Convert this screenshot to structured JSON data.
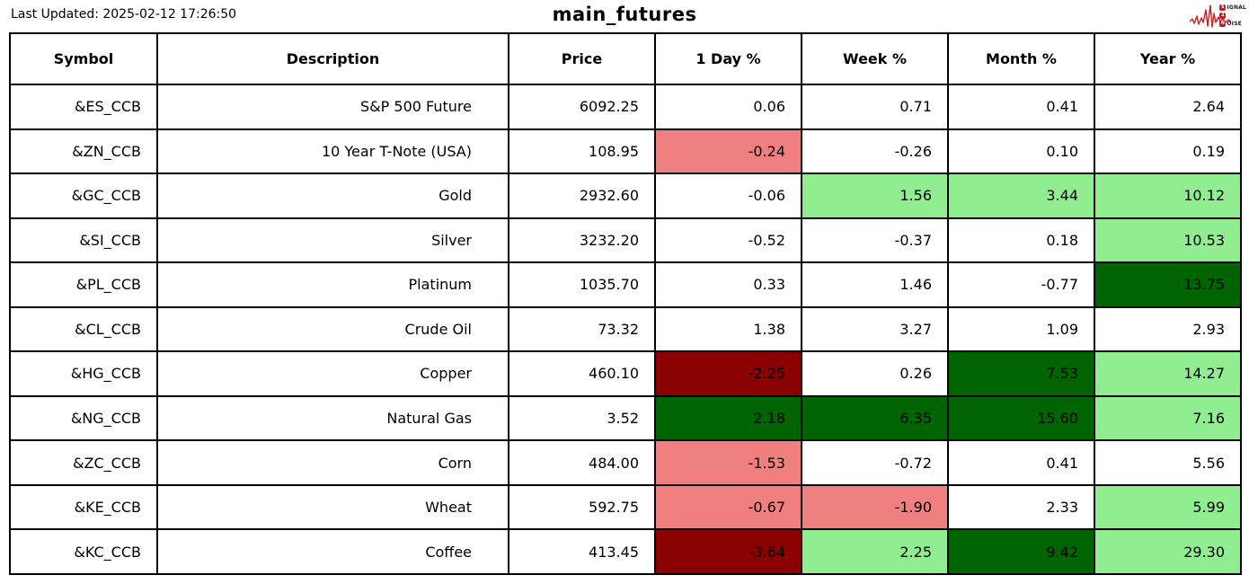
{
  "logo": {
    "lines": [
      {
        "initial": "S",
        "rest": "IGNAL"
      },
      {
        "initial": "2",
        "rest": ""
      },
      {
        "initial": "N",
        "rest": "OISE"
      }
    ],
    "accent_color": "#C41F1F",
    "wave_color": "#C22B2B"
  },
  "chart_data": {
    "type": "table",
    "title": "main_futures",
    "last_updated": "Last Updated: 2025-02-12 17:26:50",
    "columns": [
      "Symbol",
      "Description",
      "Price",
      "1 Day %",
      "Week %",
      "Month %",
      "Year %"
    ],
    "rows": [
      {
        "symbol": "&ES_CCB",
        "description": "S&P 500 Future",
        "price": "6092.25",
        "pcts": [
          "0.06",
          "0.71",
          "0.41",
          "2.64"
        ],
        "pct_colors": [
          "white",
          "white",
          "white",
          "white"
        ]
      },
      {
        "symbol": "&ZN_CCB",
        "description": "10 Year T-Note (USA)",
        "price": "108.95",
        "pcts": [
          "-0.24",
          "-0.26",
          "0.10",
          "0.19"
        ],
        "pct_colors": [
          "lightred",
          "white",
          "white",
          "white"
        ]
      },
      {
        "symbol": "&GC_CCB",
        "description": "Gold",
        "price": "2932.60",
        "pcts": [
          "-0.06",
          "1.56",
          "3.44",
          "10.12"
        ],
        "pct_colors": [
          "white",
          "lightgreen",
          "lightgreen",
          "lightgreen"
        ]
      },
      {
        "symbol": "&SI_CCB",
        "description": "Silver",
        "price": "3232.20",
        "pcts": [
          "-0.52",
          "-0.37",
          "0.18",
          "10.53"
        ],
        "pct_colors": [
          "white",
          "white",
          "white",
          "lightgreen"
        ]
      },
      {
        "symbol": "&PL_CCB",
        "description": "Platinum",
        "price": "1035.70",
        "pcts": [
          "0.33",
          "1.46",
          "-0.77",
          "13.75"
        ],
        "pct_colors": [
          "white",
          "white",
          "white",
          "darkgreen"
        ]
      },
      {
        "symbol": "&CL_CCB",
        "description": "Crude Oil",
        "price": "73.32",
        "pcts": [
          "1.38",
          "3.27",
          "1.09",
          "2.93"
        ],
        "pct_colors": [
          "white",
          "white",
          "white",
          "white"
        ]
      },
      {
        "symbol": "&HG_CCB",
        "description": "Copper",
        "price": "460.10",
        "pcts": [
          "-2.25",
          "0.26",
          "7.53",
          "14.27"
        ],
        "pct_colors": [
          "darkred",
          "white",
          "darkgreen",
          "lightgreen"
        ]
      },
      {
        "symbol": "&NG_CCB",
        "description": "Natural Gas",
        "price": "3.52",
        "pcts": [
          "2.18",
          "6.35",
          "15.60",
          "7.16"
        ],
        "pct_colors": [
          "darkgreen",
          "darkgreen",
          "darkgreen",
          "lightgreen"
        ]
      },
      {
        "symbol": "&ZC_CCB",
        "description": "Corn",
        "price": "484.00",
        "pcts": [
          "-1.53",
          "-0.72",
          "0.41",
          "5.56"
        ],
        "pct_colors": [
          "lightred",
          "white",
          "white",
          "white"
        ]
      },
      {
        "symbol": "&KE_CCB",
        "description": "Wheat",
        "price": "592.75",
        "pcts": [
          "-0.67",
          "-1.90",
          "2.33",
          "5.99"
        ],
        "pct_colors": [
          "lightred",
          "lightred",
          "white",
          "lightgreen"
        ]
      },
      {
        "symbol": "&KC_CCB",
        "description": "Coffee",
        "price": "413.45",
        "pcts": [
          "-3.64",
          "2.25",
          "9.42",
          "29.30"
        ],
        "pct_colors": [
          "darkred",
          "lightgreen",
          "darkgreen",
          "lightgreen"
        ]
      }
    ],
    "color_map": {
      "white": "#FFFFFF",
      "lightred": "#F08080",
      "darkred": "#8B0000",
      "lightgreen": "#90EE90",
      "darkgreen": "#006400"
    },
    "layout_hints": {
      "grid": "on",
      "border_color": "#000000",
      "header_row": "bold-centered",
      "values_alignment": "right"
    }
  }
}
